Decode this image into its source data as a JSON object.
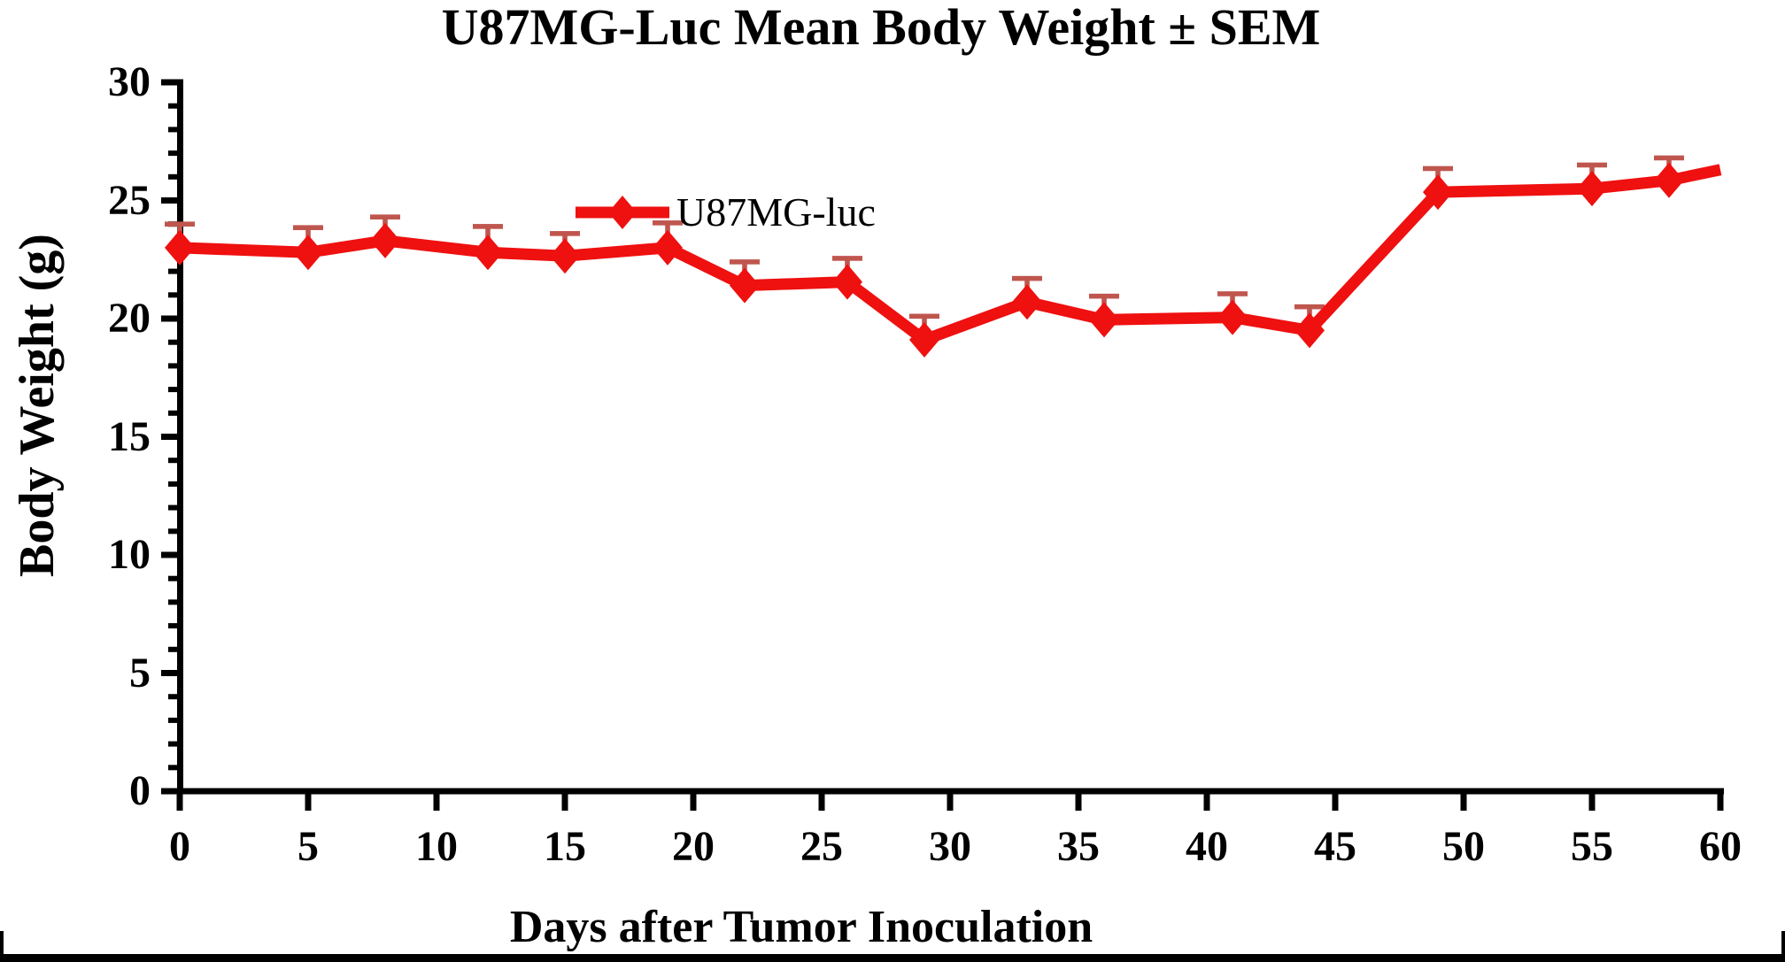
{
  "chart_data": {
    "type": "line",
    "title": "U87MG-Luc Mean Body Weight ± SEM",
    "xlabel": "Days after Tumor Inoculation",
    "ylabel": "Body Weight (g)",
    "xlim": [
      0,
      60
    ],
    "ylim": [
      0,
      30
    ],
    "x_ticks": [
      0,
      5,
      10,
      15,
      20,
      25,
      30,
      35,
      40,
      45,
      50,
      55,
      60
    ],
    "y_ticks": [
      0,
      5,
      10,
      15,
      20,
      25,
      30
    ],
    "y_minor_tick_step": 1,
    "grid": false,
    "legend_position": "inside-top-center-left",
    "axis_color": "#000000",
    "series": [
      {
        "name": "U87MG-luc",
        "color": "#ef1010",
        "error_color": "#bf564e",
        "marker": "diamond",
        "error_bars": "upper-SEM-only",
        "points": [
          {
            "day": 0,
            "weight": 23.0,
            "sem_upper": 1.0
          },
          {
            "day": 5,
            "weight": 22.8,
            "sem_upper": 1.05
          },
          {
            "day": 8,
            "weight": 23.3,
            "sem_upper": 1.0
          },
          {
            "day": 12,
            "weight": 22.8,
            "sem_upper": 1.1
          },
          {
            "day": 15,
            "weight": 22.65,
            "sem_upper": 0.95
          },
          {
            "day": 19,
            "weight": 23.0,
            "sem_upper": 1.05
          },
          {
            "day": 22,
            "weight": 21.4,
            "sem_upper": 1.0
          },
          {
            "day": 26,
            "weight": 21.55,
            "sem_upper": 1.0
          },
          {
            "day": 29,
            "weight": 19.1,
            "sem_upper": 1.0
          },
          {
            "day": 33,
            "weight": 20.7,
            "sem_upper": 1.0
          },
          {
            "day": 36,
            "weight": 19.95,
            "sem_upper": 1.0
          },
          {
            "day": 41,
            "weight": 20.05,
            "sem_upper": 1.0
          },
          {
            "day": 44,
            "weight": 19.5,
            "sem_upper": 1.0
          },
          {
            "day": 49,
            "weight": 25.35,
            "sem_upper": 1.0
          },
          {
            "day": 55,
            "weight": 25.5,
            "sem_upper": 1.0
          },
          {
            "day": 58,
            "weight": 25.85,
            "sem_upper": 0.95
          },
          {
            "day": 60,
            "weight": 26.3,
            "sem_upper": null,
            "marker": false
          }
        ]
      }
    ]
  }
}
